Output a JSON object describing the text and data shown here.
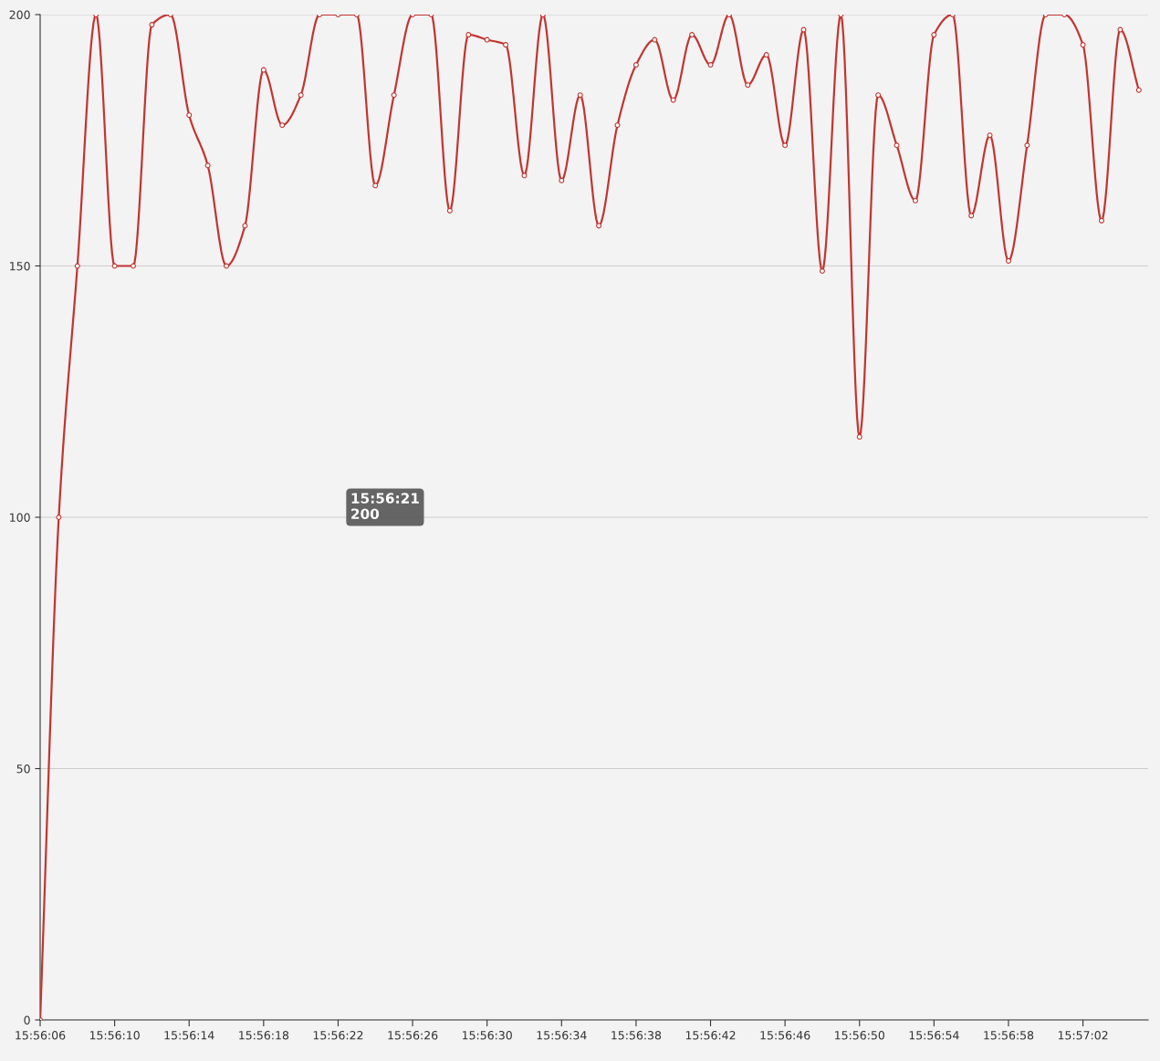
{
  "chart_data": {
    "type": "line",
    "categories": [
      "15:56:06",
      null,
      null,
      null,
      "15:56:10",
      null,
      null,
      null,
      "15:56:14",
      null,
      null,
      null,
      "15:56:18",
      null,
      null,
      null,
      "15:56:22",
      null,
      null,
      null,
      "15:56:26",
      null,
      null,
      null,
      "15:56:30",
      null,
      null,
      null,
      "15:56:34",
      null,
      null,
      null,
      "15:56:38",
      null,
      null,
      null,
      "15:56:42",
      null,
      null,
      null,
      "15:56:46",
      null,
      null,
      null,
      "15:56:50",
      null,
      null,
      null,
      "15:56:54",
      null,
      null,
      null,
      "15:56:58",
      null,
      null,
      null,
      "15:57:02",
      null,
      null,
      null
    ],
    "series": [
      {
        "color": "#c23531",
        "values": [
          0,
          100,
          150,
          200,
          150,
          150,
          198,
          200,
          180,
          170,
          150,
          158,
          189,
          178,
          184,
          200,
          200,
          200,
          166,
          184,
          200,
          200,
          161,
          196,
          195,
          194,
          168,
          200,
          167,
          184,
          158,
          178,
          190,
          195,
          183,
          196,
          190,
          200,
          186,
          192,
          174,
          197,
          149,
          200,
          116,
          184,
          174,
          163,
          196,
          200,
          160,
          176,
          151,
          174,
          200,
          200,
          194,
          159,
          197,
          185
        ]
      }
    ],
    "ylim": [
      0,
      200
    ],
    "yticks": [
      0,
      50,
      100,
      150,
      200
    ],
    "grid": "y",
    "marker": "circle",
    "line_style": "solid",
    "annotations": [
      "15:56:21\n200"
    ]
  }
}
